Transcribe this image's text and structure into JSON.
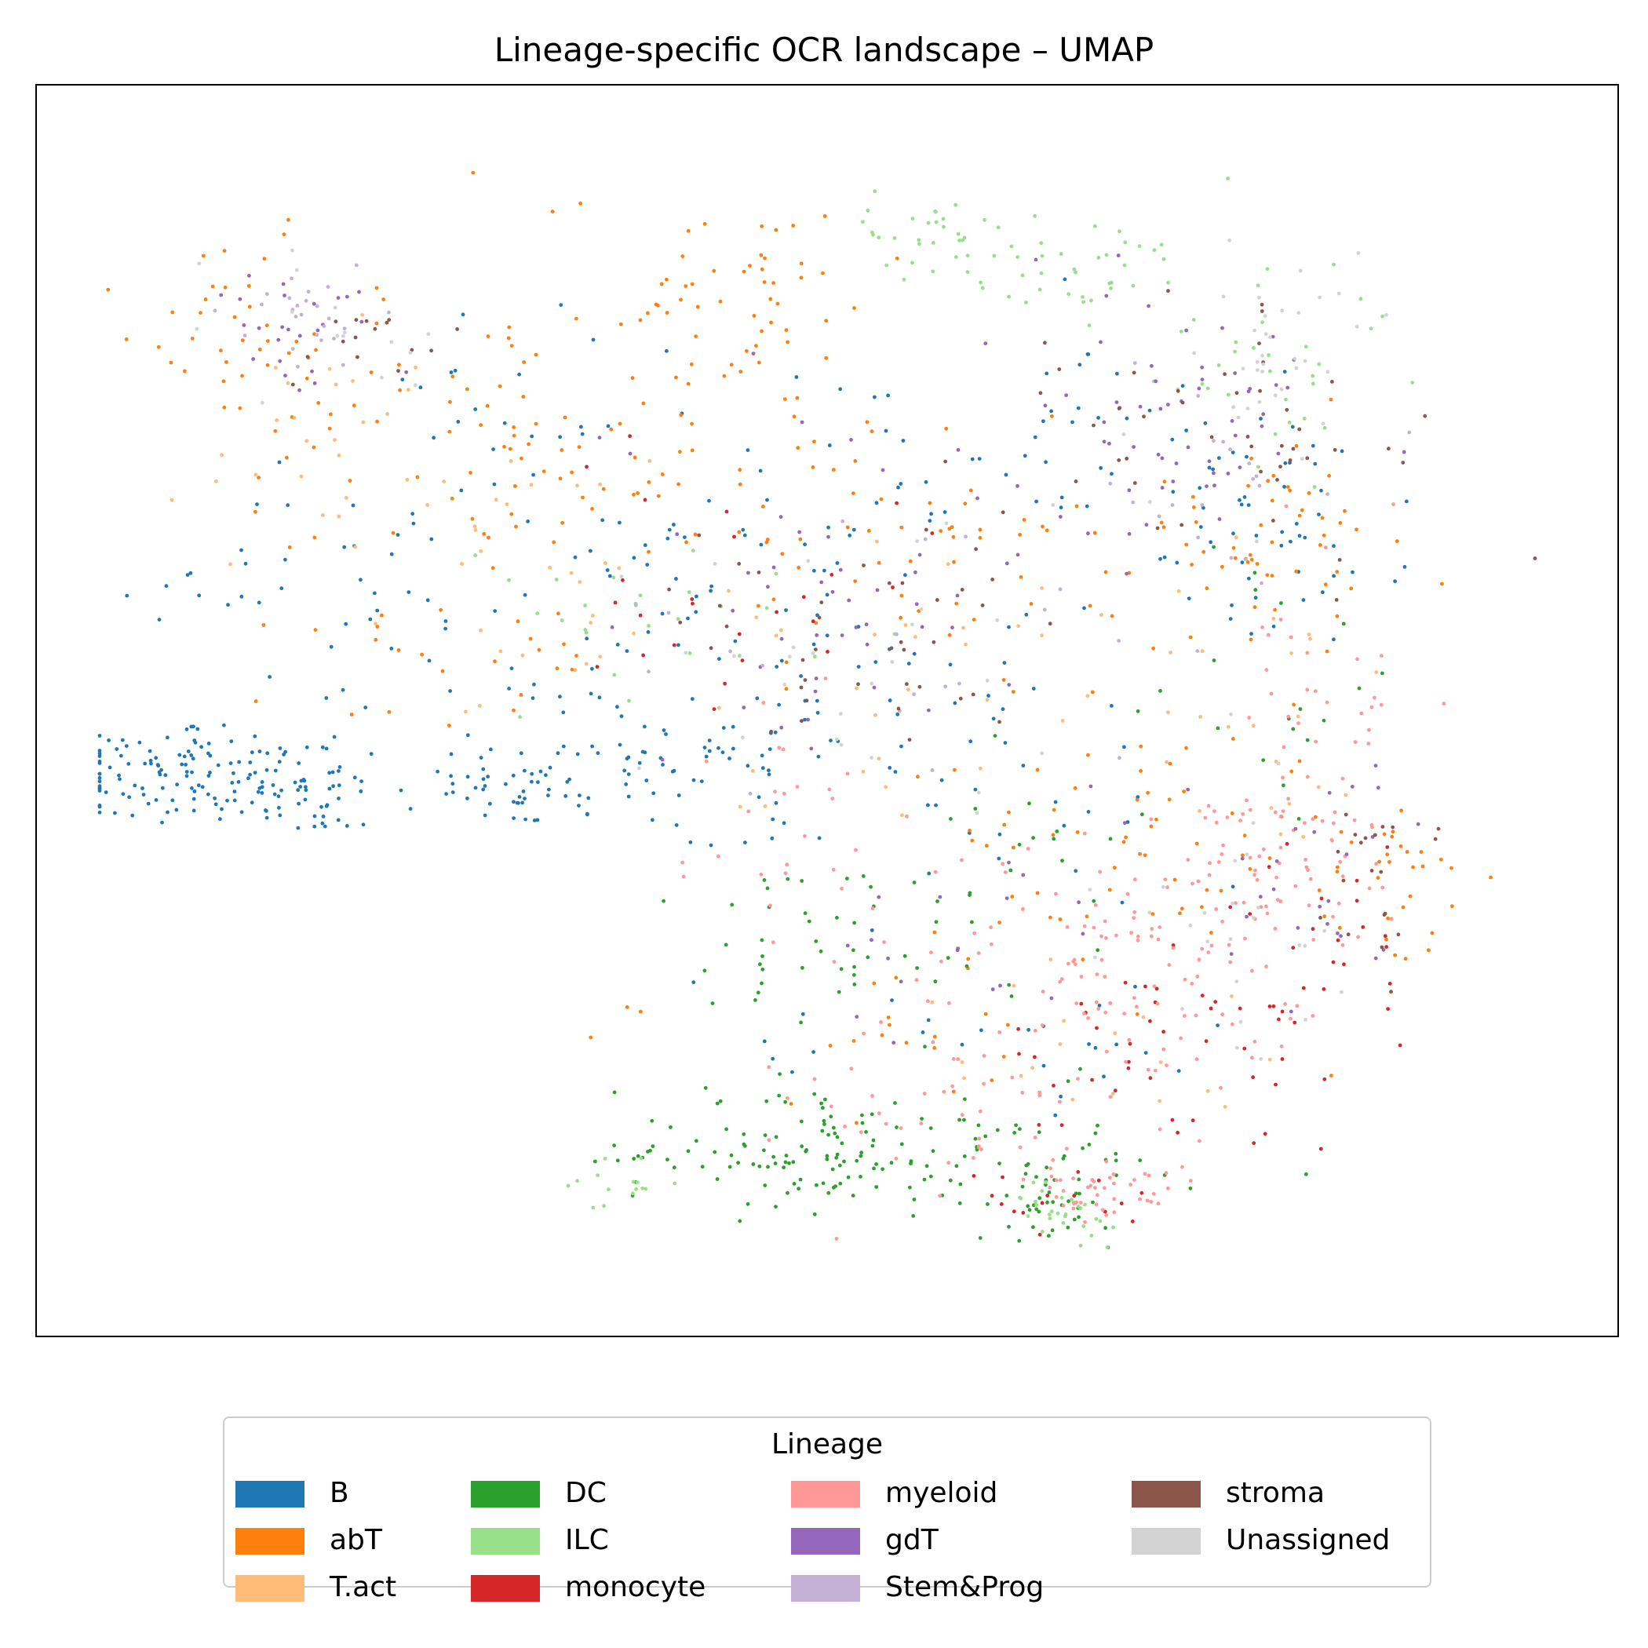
{
  "chart_data": {
    "type": "scatter",
    "title": "Lineage-specific OCR landscape – UMAP",
    "xlabel": "",
    "ylabel": "",
    "ticks": "none",
    "grid": false,
    "legend": {
      "title": "Lineage",
      "placement": "bottom-center, outside plot",
      "columns": 4
    },
    "series": [
      {
        "name": "B",
        "color": "#1f77b4",
        "regions": [
          [
            0.05,
            0.56,
            0.1,
            0.05,
            110
          ],
          [
            0.14,
            0.57,
            0.06,
            0.05,
            60
          ],
          [
            0.29,
            0.57,
            0.06,
            0.04,
            45
          ],
          [
            0.38,
            0.55,
            0.1,
            0.06,
            60
          ],
          [
            0.17,
            0.4,
            0.12,
            0.1,
            40
          ],
          [
            0.42,
            0.38,
            0.18,
            0.12,
            60
          ],
          [
            0.55,
            0.52,
            0.22,
            0.14,
            70
          ],
          [
            0.82,
            0.33,
            0.1,
            0.1,
            50
          ],
          [
            0.67,
            0.26,
            0.18,
            0.1,
            40
          ],
          [
            0.3,
            0.22,
            0.1,
            0.08,
            20
          ],
          [
            0.6,
            0.8,
            0.18,
            0.06,
            25
          ]
        ]
      },
      {
        "name": "abT",
        "color": "#ff7f0e",
        "regions": [
          [
            0.12,
            0.18,
            0.1,
            0.1,
            45
          ],
          [
            0.3,
            0.26,
            0.16,
            0.12,
            80
          ],
          [
            0.44,
            0.14,
            0.12,
            0.08,
            50
          ],
          [
            0.56,
            0.34,
            0.16,
            0.12,
            60
          ],
          [
            0.8,
            0.36,
            0.12,
            0.1,
            55
          ],
          [
            0.74,
            0.62,
            0.14,
            0.12,
            60
          ],
          [
            0.9,
            0.66,
            0.06,
            0.08,
            30
          ],
          [
            0.56,
            0.78,
            0.14,
            0.1,
            25
          ],
          [
            0.25,
            0.45,
            0.12,
            0.08,
            25
          ]
        ]
      },
      {
        "name": "T.act",
        "color": "#ffbb78",
        "regions": [
          [
            0.15,
            0.25,
            0.1,
            0.12,
            25
          ],
          [
            0.3,
            0.38,
            0.15,
            0.12,
            30
          ],
          [
            0.55,
            0.48,
            0.18,
            0.14,
            30
          ],
          [
            0.82,
            0.5,
            0.1,
            0.14,
            25
          ],
          [
            0.7,
            0.8,
            0.14,
            0.08,
            20
          ]
        ]
      },
      {
        "name": "DC",
        "color": "#2ca02c",
        "regions": [
          [
            0.48,
            0.9,
            0.12,
            0.05,
            100
          ],
          [
            0.63,
            0.9,
            0.13,
            0.06,
            60
          ],
          [
            0.66,
            0.94,
            0.04,
            0.03,
            30
          ],
          [
            0.49,
            0.73,
            0.1,
            0.1,
            40
          ],
          [
            0.62,
            0.63,
            0.14,
            0.1,
            25
          ],
          [
            0.8,
            0.5,
            0.12,
            0.12,
            20
          ]
        ]
      },
      {
        "name": "ILC",
        "color": "#98df8a",
        "regions": [
          [
            0.58,
            0.08,
            0.06,
            0.04,
            30
          ],
          [
            0.68,
            0.12,
            0.1,
            0.06,
            40
          ],
          [
            0.82,
            0.2,
            0.08,
            0.08,
            30
          ],
          [
            0.38,
            0.44,
            0.12,
            0.1,
            25
          ],
          [
            0.67,
            0.94,
            0.04,
            0.03,
            30
          ],
          [
            0.36,
            0.92,
            0.04,
            0.03,
            15
          ]
        ]
      },
      {
        "name": "monocyte",
        "color": "#d62728",
        "regions": [
          [
            0.45,
            0.42,
            0.14,
            0.12,
            25
          ],
          [
            0.75,
            0.8,
            0.12,
            0.1,
            45
          ],
          [
            0.85,
            0.7,
            0.07,
            0.08,
            20
          ],
          [
            0.66,
            0.94,
            0.06,
            0.03,
            15
          ]
        ]
      },
      {
        "name": "myeloid",
        "color": "#ff9896",
        "regions": [
          [
            0.72,
            0.74,
            0.14,
            0.12,
            130
          ],
          [
            0.82,
            0.62,
            0.08,
            0.1,
            50
          ],
          [
            0.86,
            0.48,
            0.06,
            0.12,
            30
          ],
          [
            0.58,
            0.86,
            0.12,
            0.08,
            40
          ],
          [
            0.7,
            0.93,
            0.05,
            0.03,
            40
          ],
          [
            0.5,
            0.62,
            0.1,
            0.1,
            30
          ]
        ]
      },
      {
        "name": "gdT",
        "color": "#9467bd",
        "regions": [
          [
            0.14,
            0.17,
            0.06,
            0.06,
            25
          ],
          [
            0.52,
            0.4,
            0.2,
            0.16,
            50
          ],
          [
            0.74,
            0.24,
            0.12,
            0.12,
            55
          ],
          [
            0.85,
            0.66,
            0.07,
            0.1,
            25
          ],
          [
            0.62,
            0.7,
            0.12,
            0.1,
            20
          ]
        ]
      },
      {
        "name": "Stem&Prog",
        "color": "#c5b0d5",
        "regions": [
          [
            0.15,
            0.16,
            0.06,
            0.05,
            25
          ],
          [
            0.55,
            0.45,
            0.2,
            0.16,
            20
          ],
          [
            0.78,
            0.3,
            0.1,
            0.1,
            20
          ]
        ]
      },
      {
        "name": "stroma",
        "color": "#8c564b",
        "regions": [
          [
            0.54,
            0.44,
            0.16,
            0.12,
            40
          ],
          [
            0.78,
            0.26,
            0.12,
            0.1,
            45
          ],
          [
            0.88,
            0.64,
            0.05,
            0.08,
            20
          ],
          [
            0.18,
            0.17,
            0.06,
            0.06,
            15
          ]
        ]
      },
      {
        "name": "Unassigned",
        "color": "#d3d3d3",
        "regions": [
          [
            0.82,
            0.18,
            0.1,
            0.1,
            35
          ],
          [
            0.55,
            0.46,
            0.2,
            0.16,
            30
          ],
          [
            0.8,
            0.7,
            0.1,
            0.12,
            25
          ],
          [
            0.16,
            0.16,
            0.06,
            0.06,
            15
          ]
        ]
      }
    ]
  }
}
